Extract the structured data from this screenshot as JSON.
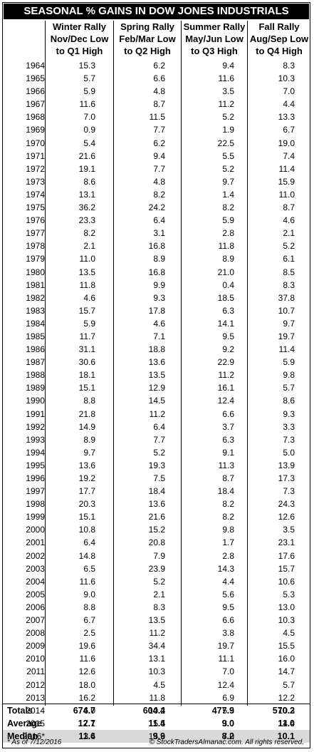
{
  "title": "SEASONAL % GAINS IN DOW JONES INDUSTRIALS",
  "columns": [
    {
      "line1": "Winter Rally",
      "line2": "Nov/Dec Low",
      "line3": "to Q1 High"
    },
    {
      "line1": "Spring Rally",
      "line2": "Feb/Mar Low",
      "line3": "to Q2 High"
    },
    {
      "line1": "Summer Rally",
      "line2": "May/Jun Low",
      "line3": "to Q3 High"
    },
    {
      "line1": "Fall Rally",
      "line2": "Aug/Sep Low",
      "line3": "to Q4 High"
    }
  ],
  "rows": [
    [
      "1964",
      "15.3",
      "6.2",
      "9.4",
      "8.3"
    ],
    [
      "1965",
      "5.7",
      "6.6",
      "11.6",
      "10.3"
    ],
    [
      "1966",
      "5.9",
      "4.8",
      "3.5",
      "7.0"
    ],
    [
      "1967",
      "11.6",
      "8.7",
      "11.2",
      "4.4"
    ],
    [
      "1968",
      "7.0",
      "11.5",
      "5.2",
      "13.3"
    ],
    [
      "1969",
      "0.9",
      "7.7",
      "1.9",
      "6.7"
    ],
    [
      "1970",
      "5.4",
      "6.2",
      "22.5",
      "19.0"
    ],
    [
      "1971",
      "21.6",
      "9.4",
      "5.5",
      "7.4"
    ],
    [
      "1972",
      "19.1",
      "7.7",
      "5.2",
      "11.4"
    ],
    [
      "1973",
      "8.6",
      "4.8",
      "9.7",
      "15.9"
    ],
    [
      "1974",
      "13.1",
      "8.2",
      "1.4",
      "11.0"
    ],
    [
      "1975",
      "36.2",
      "24.2",
      "8.2",
      "8.7"
    ],
    [
      "1976",
      "23.3",
      "6.4",
      "5.9",
      "4.6"
    ],
    [
      "1977",
      "8.2",
      "3.1",
      "2.8",
      "2.1"
    ],
    [
      "1978",
      "2.1",
      "16.8",
      "11.8",
      "5.2"
    ],
    [
      "1979",
      "11.0",
      "8.9",
      "8.9",
      "6.1"
    ],
    [
      "1980",
      "13.5",
      "16.8",
      "21.0",
      "8.5"
    ],
    [
      "1981",
      "11.8",
      "9.9",
      "0.4",
      "8.3"
    ],
    [
      "1982",
      "4.6",
      "9.3",
      "18.5",
      "37.8"
    ],
    [
      "1983",
      "15.7",
      "17.8",
      "6.3",
      "10.7"
    ],
    [
      "1984",
      "5.9",
      "4.6",
      "14.1",
      "9.7"
    ],
    [
      "1985",
      "11.7",
      "7.1",
      "9.5",
      "19.7"
    ],
    [
      "1986",
      "31.1",
      "18.8",
      "9.2",
      "11.4"
    ],
    [
      "1987",
      "30.6",
      "13.6",
      "22.9",
      "5.9"
    ],
    [
      "1988",
      "18.1",
      "13.5",
      "11.2",
      "9.8"
    ],
    [
      "1989",
      "15.1",
      "12.9",
      "16.1",
      "5.7"
    ],
    [
      "1990",
      "8.8",
      "14.5",
      "12.4",
      "8.6"
    ],
    [
      "1991",
      "21.8",
      "11.2",
      "6.6",
      "9.3"
    ],
    [
      "1992",
      "14.9",
      "6.4",
      "3.7",
      "3.3"
    ],
    [
      "1993",
      "8.9",
      "7.7",
      "6.3",
      "7.3"
    ],
    [
      "1994",
      "9.7",
      "5.2",
      "9.1",
      "5.0"
    ],
    [
      "1995",
      "13.6",
      "19.3",
      "11.3",
      "13.9"
    ],
    [
      "1996",
      "19.2",
      "7.5",
      "8.7",
      "17.3"
    ],
    [
      "1997",
      "17.7",
      "18.4",
      "18.4",
      "7.3"
    ],
    [
      "1998",
      "20.3",
      "13.6",
      "8.2",
      "24.3"
    ],
    [
      "1999",
      "15.1",
      "21.6",
      "8.2",
      "12.6"
    ],
    [
      "2000",
      "10.8",
      "15.2",
      "9.8",
      "3.5"
    ],
    [
      "2001",
      "6.4",
      "20.8",
      "1.7",
      "23.1"
    ],
    [
      "2002",
      "14.8",
      "7.9",
      "2.8",
      "17.6"
    ],
    [
      "2003",
      "6.5",
      "23.9",
      "14.3",
      "15.7"
    ],
    [
      "2004",
      "11.6",
      "5.2",
      "4.4",
      "10.6"
    ],
    [
      "2005",
      "9.0",
      "2.1",
      "5.6",
      "5.3"
    ],
    [
      "2006",
      "8.8",
      "8.3",
      "9.5",
      "13.0"
    ],
    [
      "2007",
      "6.7",
      "13.5",
      "6.6",
      "10.3"
    ],
    [
      "2008",
      "2.5",
      "11.2",
      "3.8",
      "4.5"
    ],
    [
      "2009",
      "19.6",
      "34.4",
      "19.7",
      "15.5"
    ],
    [
      "2010",
      "11.6",
      "13.1",
      "11.1",
      "16.0"
    ],
    [
      "2011",
      "12.6",
      "10.3",
      "7.0",
      "14.7"
    ],
    [
      "2012",
      "18.0",
      "4.5",
      "12.4",
      "5.7"
    ],
    [
      "2013",
      "16.2",
      "11.8",
      "6.9",
      "12.2"
    ],
    [
      "2014",
      "6.0",
      "10.2",
      "5.5",
      "10.3"
    ],
    [
      "2015",
      "7.1",
      "5.5",
      "3.0",
      "14.4"
    ],
    [
      "2016*",
      "3.4",
      "15.6",
      "7.0",
      ""
    ]
  ],
  "highlight_row": "2016*",
  "summary": [
    {
      "label": "Totals",
      "values": [
        "674.7",
        "604.4",
        "477.9",
        "570.2"
      ]
    },
    {
      "label": "Average",
      "values": [
        "12.7",
        "11.4",
        "9.0",
        "11.0"
      ]
    },
    {
      "label": "Median",
      "values": [
        "11.6",
        "9.9",
        "8.2",
        "10.1"
      ]
    }
  ],
  "footnote": "* As of 7/12/2016",
  "copyright": "© StockTradersAlmanac.com. All rights reserved."
}
